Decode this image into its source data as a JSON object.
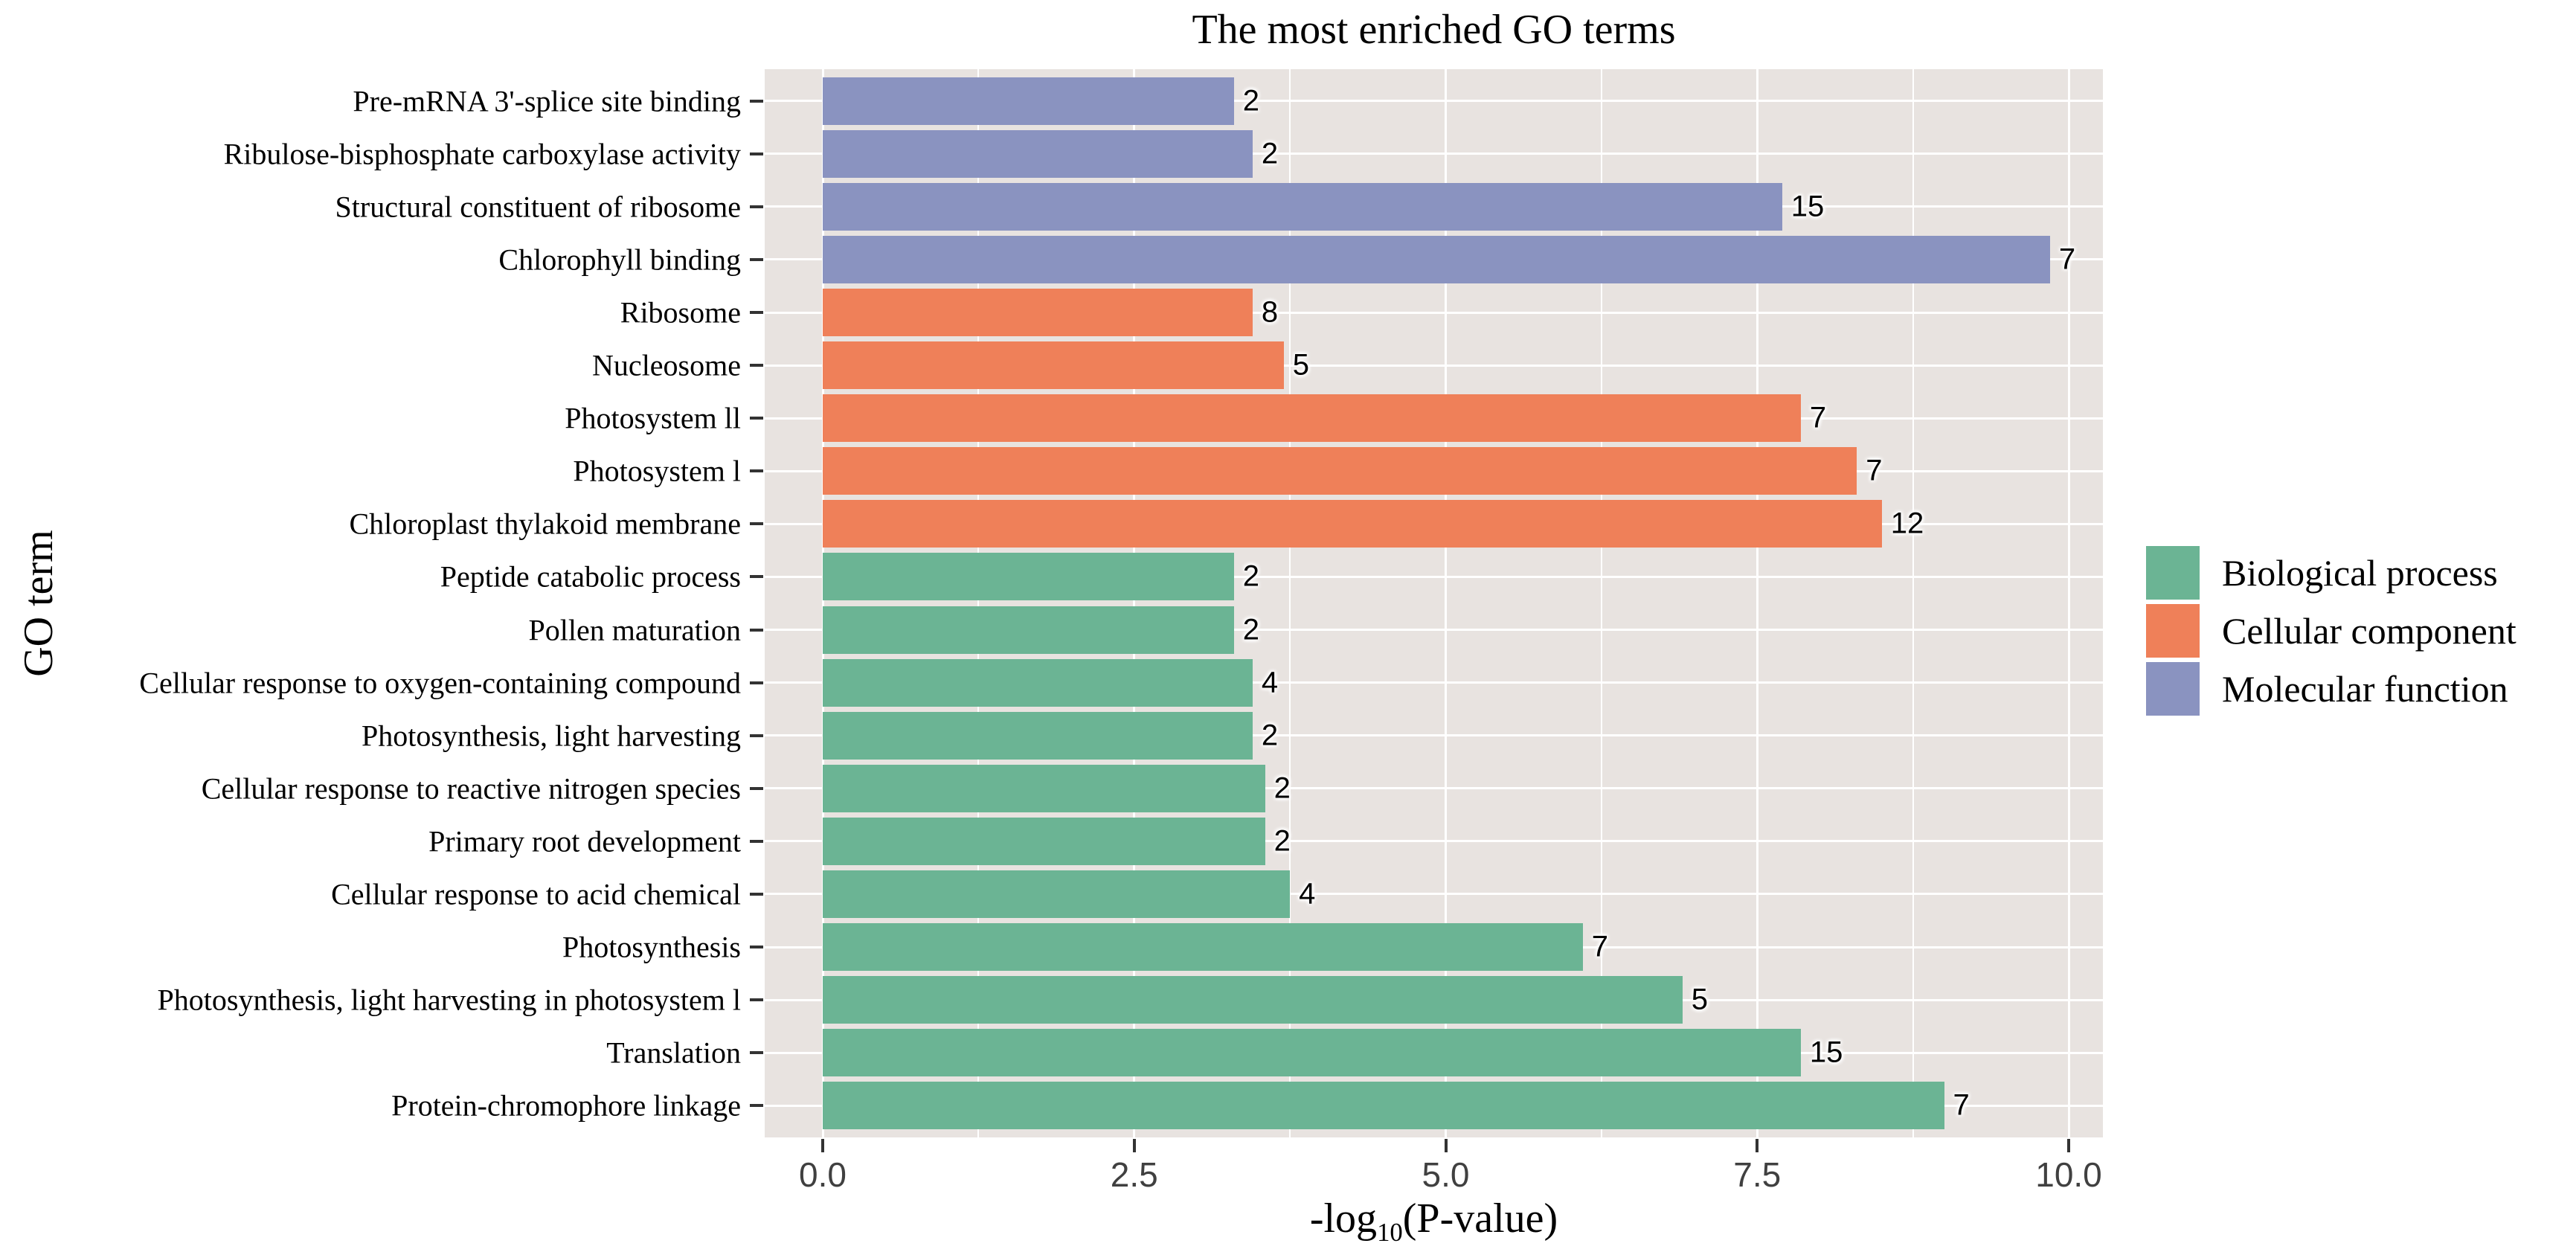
{
  "title": "The most enriched GO terms",
  "colors": {
    "panel_background": "#E8E3E0",
    "gridline": "#FFFFFF",
    "tick_mark": "#333333",
    "tick_label_text": "#404040",
    "text": "#000000",
    "biological_process": "#6BB494",
    "cellular_component": "#EF8059",
    "molecular_function": "#8A93C0"
  },
  "chart_data": {
    "type": "bar",
    "orientation": "horizontal",
    "title": "The most enriched GO terms",
    "xlabel": "-log10(P-value)",
    "xlabel_parts": {
      "prefix": "-log",
      "sub": "10",
      "suffix": "(P-value)"
    },
    "ylabel": "GO term",
    "xlim": [
      -0.47,
      10.27
    ],
    "grid": "white major and minor vertical gridlines + major horizontal gridlines on grey panel",
    "legend_position": "right of panel, middle",
    "x_major_ticks": [
      {
        "value": 0,
        "label": "0.0"
      },
      {
        "value": 2.5,
        "label": "2.5"
      },
      {
        "value": 5,
        "label": "5.0"
      },
      {
        "value": 7.5,
        "label": "7.5"
      },
      {
        "value": 10,
        "label": "10.0"
      }
    ],
    "x_minor_ticks": [
      1.25,
      3.75,
      6.25,
      8.75
    ],
    "value_labels_note": "number at end of each bar = gene count",
    "legend": [
      {
        "label": "Biological process",
        "color": "#6BB494"
      },
      {
        "label": "Cellular component",
        "color": "#EF8059"
      },
      {
        "label": "Molecular function",
        "color": "#8A93C0"
      }
    ],
    "bars": [
      {
        "term": "Pre-mRNA 3'-splice site binding",
        "category": "Molecular function",
        "value": 3.3,
        "count": 2
      },
      {
        "term": "Ribulose-bisphosphate carboxylase activity",
        "category": "Molecular function",
        "value": 3.45,
        "count": 2
      },
      {
        "term": "Structural constituent of ribosome",
        "category": "Molecular function",
        "value": 7.7,
        "count": 15
      },
      {
        "term": "Chlorophyll binding",
        "category": "Molecular function",
        "value": 9.85,
        "count": 7
      },
      {
        "term": "Ribosome",
        "category": "Cellular component",
        "value": 3.45,
        "count": 8
      },
      {
        "term": "Nucleosome",
        "category": "Cellular component",
        "value": 3.7,
        "count": 5
      },
      {
        "term": "Photosystem ll",
        "category": "Cellular component",
        "value": 7.85,
        "count": 7
      },
      {
        "term": "Photosystem l",
        "category": "Cellular component",
        "value": 8.3,
        "count": 7
      },
      {
        "term": "Chloroplast thylakoid membrane",
        "category": "Cellular component",
        "value": 8.5,
        "count": 12
      },
      {
        "term": "Peptide catabolic process",
        "category": "Biological process",
        "value": 3.3,
        "count": 2
      },
      {
        "term": "Pollen maturation",
        "category": "Biological process",
        "value": 3.3,
        "count": 2
      },
      {
        "term": "Cellular response to oxygen-containing compound",
        "category": "Biological process",
        "value": 3.45,
        "count": 4
      },
      {
        "term": "Photosynthesis, light harvesting",
        "category": "Biological process",
        "value": 3.45,
        "count": 2
      },
      {
        "term": "Cellular response to reactive nitrogen species",
        "category": "Biological process",
        "value": 3.55,
        "count": 2
      },
      {
        "term": "Primary root development",
        "category": "Biological process",
        "value": 3.55,
        "count": 2
      },
      {
        "term": "Cellular response to acid chemical",
        "category": "Biological process",
        "value": 3.75,
        "count": 4
      },
      {
        "term": "Photosynthesis",
        "category": "Biological process",
        "value": 6.1,
        "count": 7
      },
      {
        "term": "Photosynthesis, light harvesting in photosystem l",
        "category": "Biological process",
        "value": 6.9,
        "count": 5
      },
      {
        "term": "Translation",
        "category": "Biological process",
        "value": 7.85,
        "count": 15
      },
      {
        "term": "Protein-chromophore linkage",
        "category": "Biological process",
        "value": 9.0,
        "count": 7
      }
    ]
  }
}
